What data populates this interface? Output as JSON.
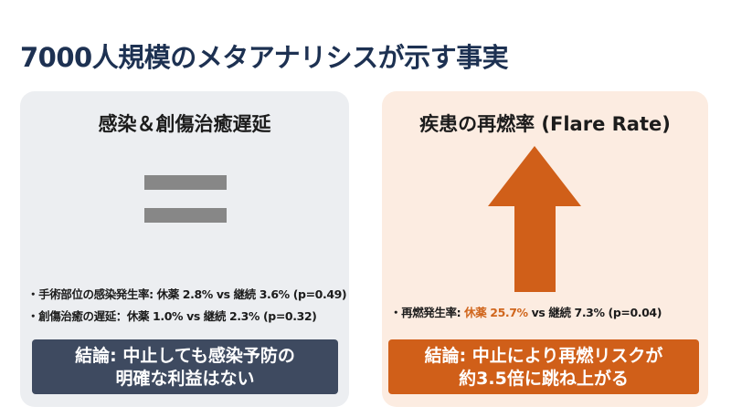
{
  "title": "7000人規模のメタアナリシスが示す事実",
  "left": {
    "heading": "感染＆創傷治癒遅延",
    "icon": "equals-sign-icon",
    "bullets": [
      "・手術部位の感染発生率: 休薬 2.8% vs 継続 3.6% (p=0.49)",
      "・創傷治癒の遅延：休薬 1.0% vs 継続 2.3% (p=0.32)"
    ],
    "conclusion_line1": "結論: 中止しても感染予防の",
    "conclusion_line2": "明確な利益はない",
    "color": "#3e4a60"
  },
  "right": {
    "heading": "疾患の再燃率 (Flare Rate)",
    "icon": "up-arrow-icon",
    "bullet_prefix": "・再燃発生率: ",
    "bullet_highlight": "休薬 25.7%",
    "bullet_suffix": " vs 継続 7.3% (p=0.04)",
    "conclusion_line1": "結論: 中止により再燃リスクが",
    "conclusion_line2": "約3.5倍に跳ね上がる",
    "color": "#d05f19"
  }
}
